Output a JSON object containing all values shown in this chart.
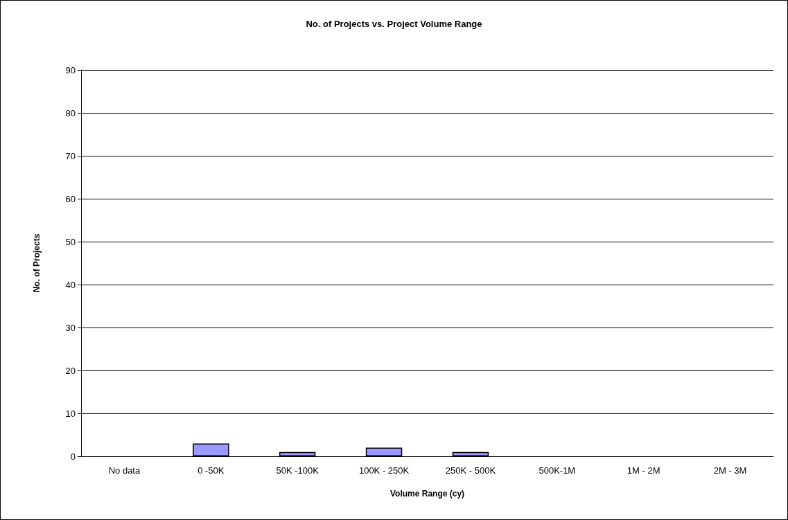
{
  "chart_data": {
    "type": "bar",
    "title": "No. of Projects vs. Project Volume Range",
    "xlabel": "Volume Range (cy)",
    "ylabel": "No. of Projects",
    "categories": [
      "No data",
      "0 -50K",
      "50K -100K",
      "100K - 250K",
      "250K - 500K",
      "500K-1M",
      "1M - 2M",
      "2M - 3M"
    ],
    "values": [
      0,
      3,
      1,
      2,
      1,
      0,
      0,
      0
    ],
    "color": "#9999ff",
    "ylim": [
      0,
      90
    ],
    "yticks": [
      0,
      10,
      20,
      30,
      40,
      50,
      60,
      70,
      80,
      90
    ],
    "grid": "y"
  }
}
